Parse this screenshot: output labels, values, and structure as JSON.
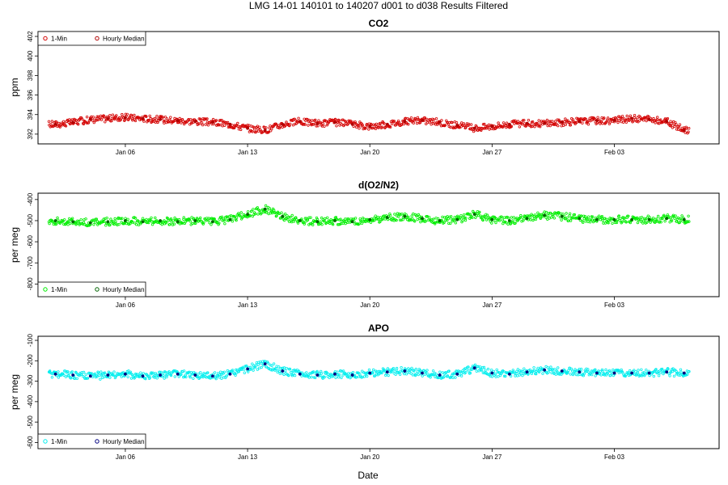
{
  "page_title": "LMG   14-01    140101 to 140207    d001 to d038   Results Filtered",
  "xlabel": "Date",
  "colors": {
    "co2_point": "#d40000",
    "co2_median": "#b00000",
    "o2_point": "#00ee00",
    "o2_median": "#006400",
    "apo_point": "#00eeee",
    "apo_median": "#000080"
  },
  "chart_data": [
    {
      "type": "scatter",
      "title": "CO2",
      "ylabel": "ppm",
      "x_axis": {
        "type": "date",
        "min": "2014-01-01",
        "max": "2014-02-09",
        "ticks": [
          "2014-01-06",
          "2014-01-13",
          "2014-01-20",
          "2014-01-27",
          "2014-02-03"
        ],
        "tick_labels": [
          "Jan 06",
          "Jan 13",
          "Jan 20",
          "Jan 27",
          "Feb 03"
        ]
      },
      "ylim": [
        391,
        402.5
      ],
      "yticks": [
        392,
        394,
        396,
        398,
        400,
        402
      ],
      "legend": {
        "placement": "top-left",
        "entries": [
          "1-Min",
          "Hourly Median"
        ]
      },
      "series": [
        {
          "name": "Hourly Median",
          "x": [
            "2014-01-02",
            "2014-01-03",
            "2014-01-04",
            "2014-01-05",
            "2014-01-06",
            "2014-01-07",
            "2014-01-08",
            "2014-01-09",
            "2014-01-10",
            "2014-01-11",
            "2014-01-12",
            "2014-01-13",
            "2014-01-14",
            "2014-01-15",
            "2014-01-16",
            "2014-01-17",
            "2014-01-18",
            "2014-01-19",
            "2014-01-20",
            "2014-01-21",
            "2014-01-22",
            "2014-01-23",
            "2014-01-24",
            "2014-01-25",
            "2014-01-26",
            "2014-01-27",
            "2014-01-28",
            "2014-01-29",
            "2014-01-30",
            "2014-01-31",
            "2014-02-01",
            "2014-02-02",
            "2014-02-03",
            "2014-02-04",
            "2014-02-05",
            "2014-02-06",
            "2014-02-07"
          ],
          "values": [
            393.0,
            393.2,
            393.5,
            393.6,
            393.7,
            393.6,
            393.5,
            393.4,
            393.3,
            393.2,
            393.0,
            392.6,
            392.4,
            393.0,
            393.3,
            393.1,
            393.2,
            393.0,
            392.8,
            393.0,
            393.3,
            393.4,
            393.2,
            392.9,
            392.6,
            392.8,
            393.0,
            393.1,
            393.1,
            393.2,
            393.3,
            393.4,
            393.4,
            393.6,
            393.5,
            393.3,
            392.4
          ]
        }
      ]
    },
    {
      "type": "scatter",
      "title": "d(O2/N2)",
      "ylabel": "per meg",
      "x_axis": {
        "type": "date",
        "min": "2014-01-01",
        "max": "2014-02-09",
        "ticks": [
          "2014-01-06",
          "2014-01-13",
          "2014-01-20",
          "2014-01-27",
          "2014-02-03"
        ],
        "tick_labels": [
          "Jan 06",
          "Jan 13",
          "Jan 20",
          "Jan 27",
          "Feb 03"
        ]
      },
      "ylim": [
        -860,
        -370
      ],
      "yticks": [
        -800,
        -700,
        -600,
        -500,
        -400
      ],
      "legend": {
        "placement": "bottom-left",
        "entries": [
          "1-Min",
          "Hourly Median"
        ]
      },
      "series": [
        {
          "name": "Hourly Median",
          "x": [
            "2014-01-02",
            "2014-01-03",
            "2014-01-04",
            "2014-01-05",
            "2014-01-06",
            "2014-01-07",
            "2014-01-08",
            "2014-01-09",
            "2014-01-10",
            "2014-01-11",
            "2014-01-12",
            "2014-01-13",
            "2014-01-14",
            "2014-01-15",
            "2014-01-16",
            "2014-01-17",
            "2014-01-18",
            "2014-01-19",
            "2014-01-20",
            "2014-01-21",
            "2014-01-22",
            "2014-01-23",
            "2014-01-24",
            "2014-01-25",
            "2014-01-26",
            "2014-01-27",
            "2014-01-28",
            "2014-01-29",
            "2014-01-30",
            "2014-01-31",
            "2014-02-01",
            "2014-02-02",
            "2014-02-03",
            "2014-02-04",
            "2014-02-05",
            "2014-02-06",
            "2014-02-07"
          ],
          "values": [
            -500,
            -505,
            -510,
            -505,
            -500,
            -505,
            -500,
            -505,
            -500,
            -505,
            -495,
            -470,
            -445,
            -480,
            -500,
            -505,
            -500,
            -505,
            -495,
            -485,
            -480,
            -490,
            -500,
            -495,
            -470,
            -495,
            -500,
            -490,
            -475,
            -480,
            -490,
            -495,
            -495,
            -495,
            -495,
            -490,
            -495
          ]
        }
      ]
    },
    {
      "type": "scatter",
      "title": "APO",
      "ylabel": "per meg",
      "x_axis": {
        "type": "date",
        "min": "2014-01-01",
        "max": "2014-02-09",
        "ticks": [
          "2014-01-06",
          "2014-01-13",
          "2014-01-20",
          "2014-01-27",
          "2014-02-03"
        ],
        "tick_labels": [
          "Jan 06",
          "Jan 13",
          "Jan 20",
          "Jan 27",
          "Feb 03"
        ]
      },
      "ylim": [
        -630,
        -80
      ],
      "yticks": [
        -600,
        -500,
        -400,
        -300,
        -200,
        -100
      ],
      "legend": {
        "placement": "bottom-left",
        "entries": [
          "1-Min",
          "Hourly Median"
        ]
      },
      "series": [
        {
          "name": "Hourly Median",
          "x": [
            "2014-01-02",
            "2014-01-03",
            "2014-01-04",
            "2014-01-05",
            "2014-01-06",
            "2014-01-07",
            "2014-01-08",
            "2014-01-09",
            "2014-01-10",
            "2014-01-11",
            "2014-01-12",
            "2014-01-13",
            "2014-01-14",
            "2014-01-15",
            "2014-01-16",
            "2014-01-17",
            "2014-01-18",
            "2014-01-19",
            "2014-01-20",
            "2014-01-21",
            "2014-01-22",
            "2014-01-23",
            "2014-01-24",
            "2014-01-25",
            "2014-01-26",
            "2014-01-27",
            "2014-01-28",
            "2014-01-29",
            "2014-01-30",
            "2014-01-31",
            "2014-02-01",
            "2014-02-02",
            "2014-02-03",
            "2014-02-04",
            "2014-02-05",
            "2014-02-06",
            "2014-02-07"
          ],
          "values": [
            -265,
            -270,
            -275,
            -270,
            -265,
            -275,
            -270,
            -265,
            -270,
            -275,
            -265,
            -240,
            -215,
            -250,
            -265,
            -270,
            -265,
            -270,
            -260,
            -255,
            -250,
            -260,
            -270,
            -265,
            -235,
            -260,
            -265,
            -255,
            -245,
            -250,
            -255,
            -260,
            -260,
            -260,
            -260,
            -255,
            -260
          ]
        }
      ]
    }
  ]
}
